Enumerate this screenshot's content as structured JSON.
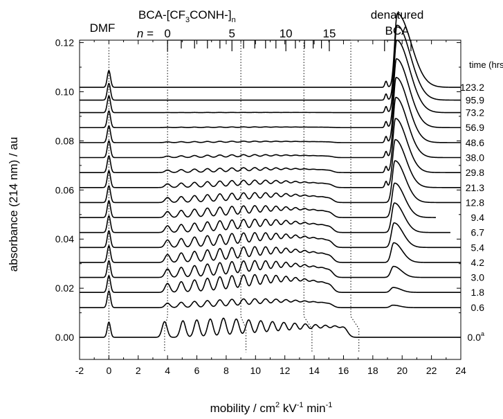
{
  "chart_data": {
    "type": "line",
    "title": "",
    "xlabel_main": "mobility / cm",
    "xlabel_sup1": "2",
    "xlabel_mid": " kV",
    "xlabel_sup2": "-1",
    "xlabel_end": " min",
    "xlabel_sup3": "-1",
    "ylabel": "absorbance (214 nm) / au",
    "xlim": [
      -2,
      24
    ],
    "ylim": [
      -0.009,
      0.121
    ],
    "x_ticks": [
      -2,
      0,
      2,
      4,
      6,
      8,
      10,
      12,
      14,
      16,
      18,
      20,
      22,
      24
    ],
    "y_ticks": [
      0.0,
      0.02,
      0.04,
      0.06,
      0.08,
      0.1,
      0.12
    ],
    "y_tick_labels": [
      "0.00",
      "0.02",
      "0.04",
      "0.06",
      "0.08",
      "0.10",
      "0.12"
    ],
    "annotations": {
      "dmf": "DMF",
      "bca_prefix": "BCA-[CF",
      "bca_sub3": "3",
      "bca_mid": "CONH-]",
      "bca_subn": "n",
      "n_label": "n",
      "n_eq": " = ",
      "n_values": [
        "0",
        "5",
        "10",
        "15"
      ],
      "denatured_line1": "denatured",
      "denatured_line2": "BCA",
      "time_header": "time (hrs)"
    },
    "dmf_mobility": 0.0,
    "ladder_mobility_n0": 4.0,
    "ladder_mobility_n5": 9.0,
    "ladder_mobility_n10": 13.3,
    "ladder_mobility_n15": 16.5,
    "denatured_range": [
      18.8,
      20.6
    ],
    "series": [
      {
        "name": "0.0",
        "sup": "a",
        "baseline": 0.0,
        "ladder_amp": 0.0078,
        "denatured_amp": 0.0,
        "end_x": 24
      },
      {
        "name": "0.6",
        "baseline": 0.0121,
        "ladder_amp": 0.0036,
        "denatured_amp": 0.001,
        "end_x": 24
      },
      {
        "name": "1.8",
        "baseline": 0.0183,
        "ladder_amp": 0.0072,
        "denatured_amp": 0.002,
        "end_x": 24
      },
      {
        "name": "3.0",
        "baseline": 0.0244,
        "ladder_amp": 0.0068,
        "denatured_amp": 0.0045,
        "end_x": 24
      },
      {
        "name": "4.2",
        "baseline": 0.0305,
        "ladder_amp": 0.0064,
        "denatured_amp": 0.008,
        "end_x": 24
      },
      {
        "name": "5.4",
        "baseline": 0.0366,
        "ladder_amp": 0.006,
        "denatured_amp": 0.01,
        "end_x": 24
      },
      {
        "name": "6.7",
        "baseline": 0.0427,
        "ladder_amp": 0.0054,
        "denatured_amp": 0.012,
        "end_x": 23.3
      },
      {
        "name": "9.4",
        "baseline": 0.0488,
        "ladder_amp": 0.0048,
        "denatured_amp": 0.014,
        "end_x": 22.3
      },
      {
        "name": "12.8",
        "baseline": 0.0549,
        "ladder_amp": 0.004,
        "denatured_amp": 0.017,
        "end_x": 24
      },
      {
        "name": "21.3",
        "baseline": 0.061,
        "ladder_amp": 0.003,
        "denatured_amp": 0.0195,
        "end_x": 24
      },
      {
        "name": "29.8",
        "baseline": 0.0671,
        "ladder_amp": 0.002,
        "denatured_amp": 0.022,
        "end_x": 24
      },
      {
        "name": "38.0",
        "baseline": 0.0732,
        "ladder_amp": 0.0012,
        "denatured_amp": 0.0245,
        "end_x": 24
      },
      {
        "name": "48.6",
        "baseline": 0.0793,
        "ladder_amp": 0.0006,
        "denatured_amp": 0.0265,
        "end_x": 24
      },
      {
        "name": "56.9",
        "baseline": 0.0854,
        "ladder_amp": 0.0003,
        "denatured_amp": 0.028,
        "end_x": 24
      },
      {
        "name": "73.2",
        "baseline": 0.0915,
        "ladder_amp": 0.0001,
        "denatured_amp": 0.0295,
        "end_x": 24
      },
      {
        "name": "95.9",
        "baseline": 0.0966,
        "ladder_amp": 0.0,
        "denatured_amp": 0.0305,
        "end_x": 24
      },
      {
        "name": "123.2",
        "baseline": 0.1018,
        "ladder_amp": 0.0,
        "denatured_amp": 0.03,
        "end_x": 24
      }
    ]
  }
}
